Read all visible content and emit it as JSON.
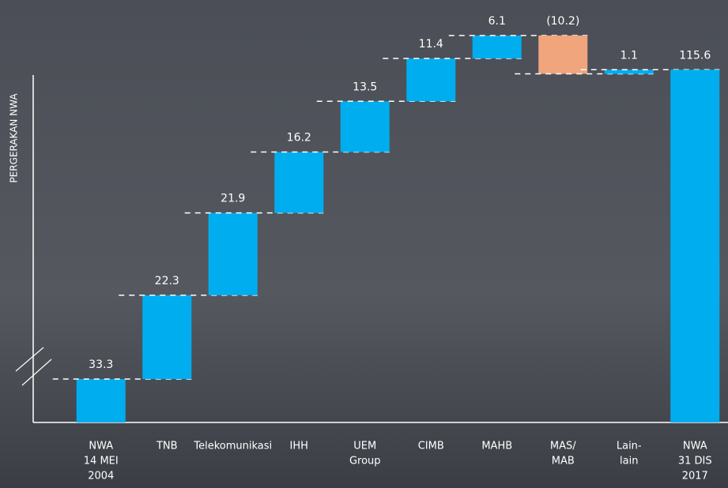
{
  "chart_data": {
    "type": "waterfall",
    "y_label": "PERGERAKAN NWA",
    "categories": [
      [
        "NWA",
        "14 MEI",
        "2004"
      ],
      [
        "TNB"
      ],
      [
        "Telekomunikasi"
      ],
      [
        "IHH"
      ],
      [
        "UEM",
        "Group"
      ],
      [
        "CIMB"
      ],
      [
        "MAHB"
      ],
      [
        "MAS/",
        "MAB"
      ],
      [
        "Lain-",
        "lain"
      ],
      [
        "NWA",
        "31 DIS",
        "2017"
      ]
    ],
    "values": [
      33.3,
      22.3,
      21.9,
      16.2,
      13.5,
      11.4,
      6.1,
      -10.2,
      1.1,
      115.6
    ],
    "value_labels": [
      "33.3",
      "22.3",
      "21.9",
      "16.2",
      "13.5",
      "11.4",
      "6.1",
      "(10.2)",
      "1.1",
      "115.6"
    ],
    "colors": {
      "increase": "#00aeef",
      "decrease": "#f0a57d",
      "decrease_label": "#e0245e"
    }
  }
}
